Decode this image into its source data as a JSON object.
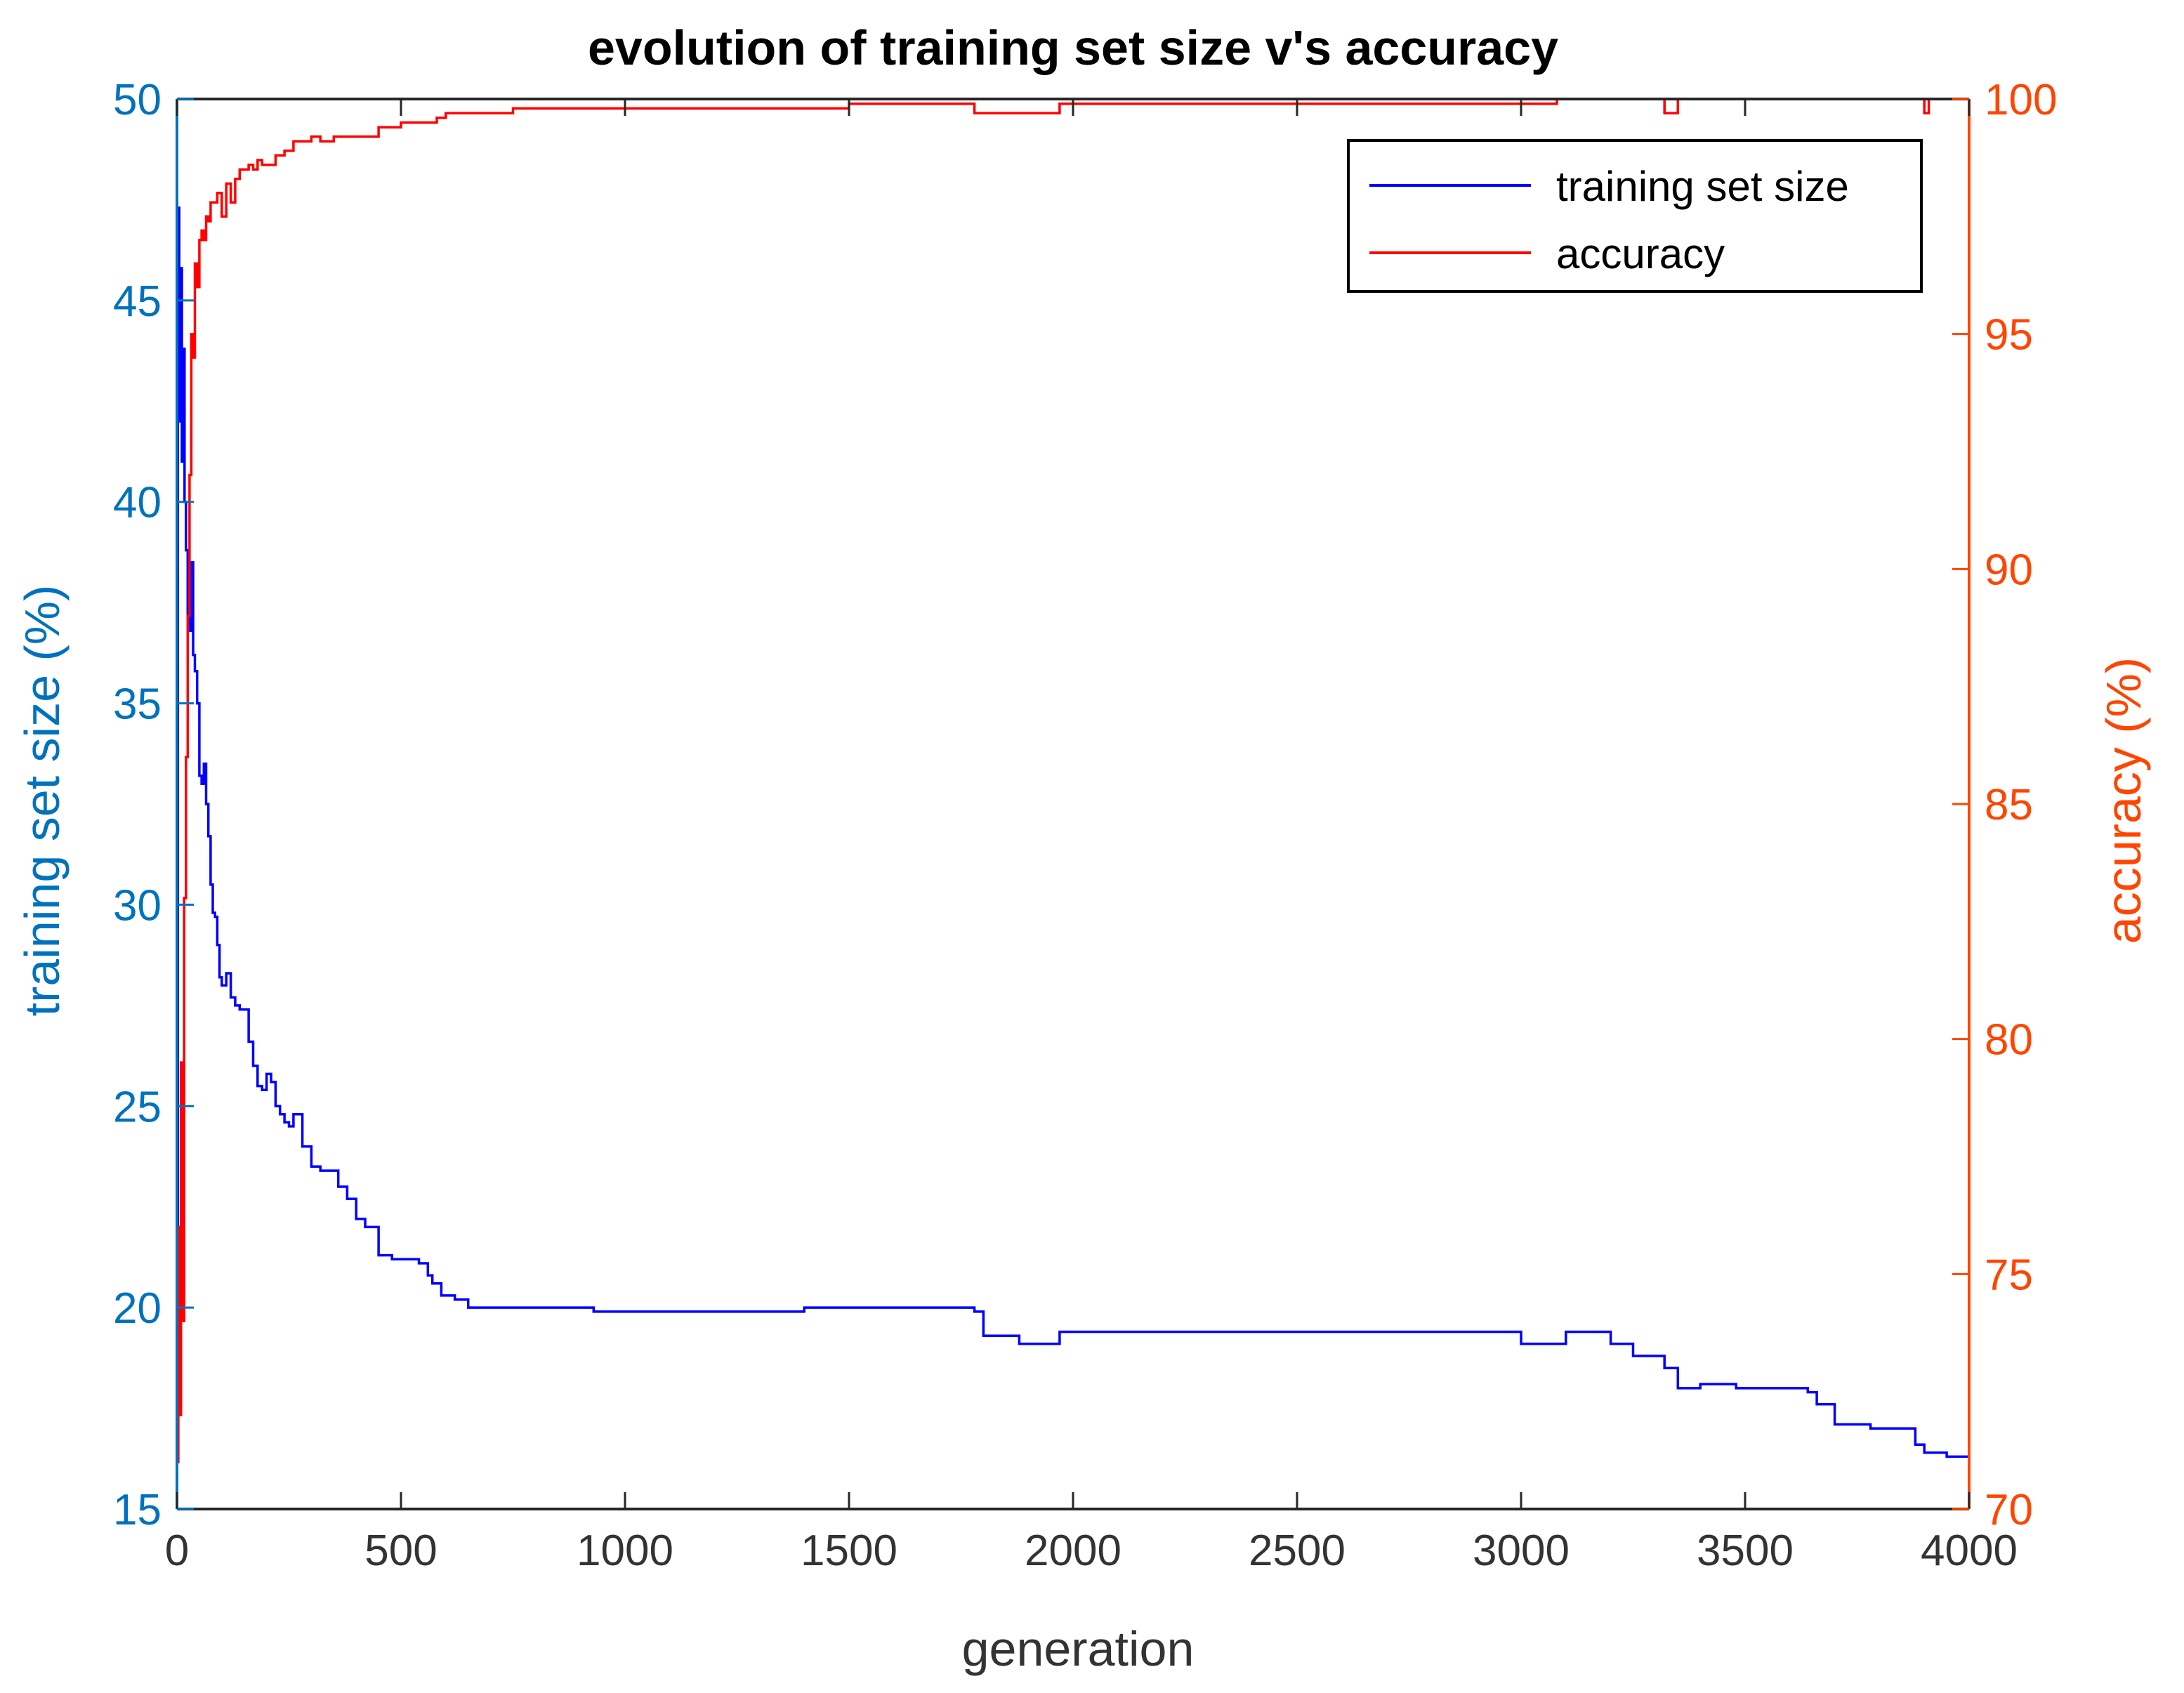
{
  "chart_data": {
    "type": "line",
    "title": "evolution of training set size  v's  accuracy",
    "xlabel": "generation",
    "ylabel_left": "training set size (%)",
    "ylabel_right": "accuracy (%)",
    "xlim": [
      0,
      4000
    ],
    "ylim_left": [
      15,
      50
    ],
    "ylim_right": [
      70,
      100
    ],
    "xticks": [
      "0",
      "500",
      "1000",
      "1500",
      "2000",
      "2500",
      "3000",
      "3500",
      "4000"
    ],
    "yticks_left": [
      "15",
      "20",
      "25",
      "30",
      "35",
      "40",
      "45",
      "50"
    ],
    "yticks_right": [
      "70",
      "75",
      "80",
      "85",
      "90",
      "95",
      "100"
    ],
    "legend_position": "top-right",
    "colors": {
      "left_axis": "#0072BD",
      "right_axis": "#FF4500",
      "training_line": "#0000FF",
      "accuracy_line": "#FF0000"
    },
    "series": [
      {
        "name": "training set size",
        "axis": "left",
        "x": [
          0,
          2,
          5,
          8,
          11,
          14,
          17,
          20,
          24,
          28,
          32,
          36,
          40,
          45,
          50,
          55,
          60,
          65,
          70,
          75,
          80,
          85,
          90,
          95,
          100,
          110,
          120,
          130,
          140,
          150,
          160,
          170,
          180,
          190,
          200,
          210,
          220,
          230,
          240,
          250,
          260,
          280,
          300,
          320,
          340,
          360,
          380,
          400,
          420,
          450,
          480,
          500,
          540,
          560,
          570,
          590,
          620,
          650,
          700,
          800,
          930,
          1100,
          1300,
          1400,
          1500,
          1660,
          1780,
          1800,
          1880,
          1970,
          2000,
          2660,
          3000,
          3070,
          3100,
          3200,
          3250,
          3320,
          3350,
          3400,
          3480,
          3640,
          3660,
          3700,
          3780,
          3860,
          3880,
          3900,
          3950,
          4000
        ],
        "values": [
          16.4,
          47.3,
          42,
          45.8,
          41,
          43.8,
          40,
          38.8,
          37.2,
          36.8,
          38.5,
          36.2,
          35.8,
          35.0,
          33.2,
          33.0,
          33.5,
          32.5,
          31.7,
          30.5,
          29.8,
          29.7,
          29.0,
          28.2,
          28.0,
          28.3,
          27.7,
          27.5,
          27.4,
          27.4,
          26.6,
          26.0,
          25.5,
          25.4,
          25.8,
          25.6,
          25.0,
          24.8,
          24.6,
          24.5,
          24.8,
          24.0,
          23.5,
          23.4,
          23.4,
          23.0,
          22.7,
          22.2,
          22.0,
          21.3,
          21.2,
          21.2,
          21.1,
          20.8,
          20.6,
          20.3,
          20.2,
          20.0,
          20.0,
          20.0,
          19.9,
          19.9,
          19.9,
          20.0,
          20.0,
          20.0,
          19.9,
          19.3,
          19.1,
          19.4,
          19.4,
          19.4,
          19.1,
          19.1,
          19.4,
          19.1,
          18.8,
          18.5,
          18.0,
          18.1,
          18.0,
          17.9,
          17.6,
          17.1,
          17.0,
          17.0,
          16.6,
          16.4,
          16.3,
          16.4
        ]
      },
      {
        "name": "accuracy",
        "axis": "right",
        "x": [
          0,
          3,
          6,
          9,
          12,
          16,
          20,
          24,
          28,
          32,
          36,
          40,
          45,
          50,
          55,
          60,
          65,
          70,
          75,
          80,
          90,
          100,
          110,
          120,
          130,
          140,
          150,
          160,
          170,
          180,
          190,
          200,
          220,
          240,
          260,
          280,
          300,
          320,
          350,
          380,
          410,
          450,
          500,
          530,
          580,
          600,
          700,
          750,
          800,
          930,
          1000,
          1200,
          1300,
          1400,
          1500,
          1750,
          1780,
          1800,
          1950,
          1970,
          2000,
          2500,
          2660,
          3000,
          3070,
          3080,
          3200,
          3300,
          3320,
          3330,
          3350,
          3500,
          3880,
          3900,
          3910,
          4000
        ],
        "values": [
          71.0,
          76.0,
          72.0,
          79.5,
          74.0,
          83.0,
          86.0,
          89.0,
          92.0,
          95.0,
          94.5,
          96.5,
          96.0,
          97.0,
          97.2,
          97.0,
          97.5,
          97.4,
          97.8,
          97.8,
          98.0,
          97.5,
          98.2,
          97.8,
          98.3,
          98.5,
          98.5,
          98.6,
          98.5,
          98.7,
          98.6,
          98.6,
          98.8,
          98.9,
          99.1,
          99.1,
          99.2,
          99.1,
          99.2,
          99.2,
          99.2,
          99.4,
          99.5,
          99.5,
          99.6,
          99.7,
          99.7,
          99.8,
          99.8,
          99.8,
          99.8,
          99.8,
          99.8,
          99.8,
          99.9,
          99.9,
          99.7,
          99.7,
          99.7,
          99.9,
          99.9,
          99.9,
          99.9,
          99.9,
          99.9,
          100.0,
          100.0,
          100.0,
          99.7,
          99.7,
          100.0,
          100.0,
          100.0,
          99.7,
          100.0,
          100.0
        ]
      }
    ]
  }
}
